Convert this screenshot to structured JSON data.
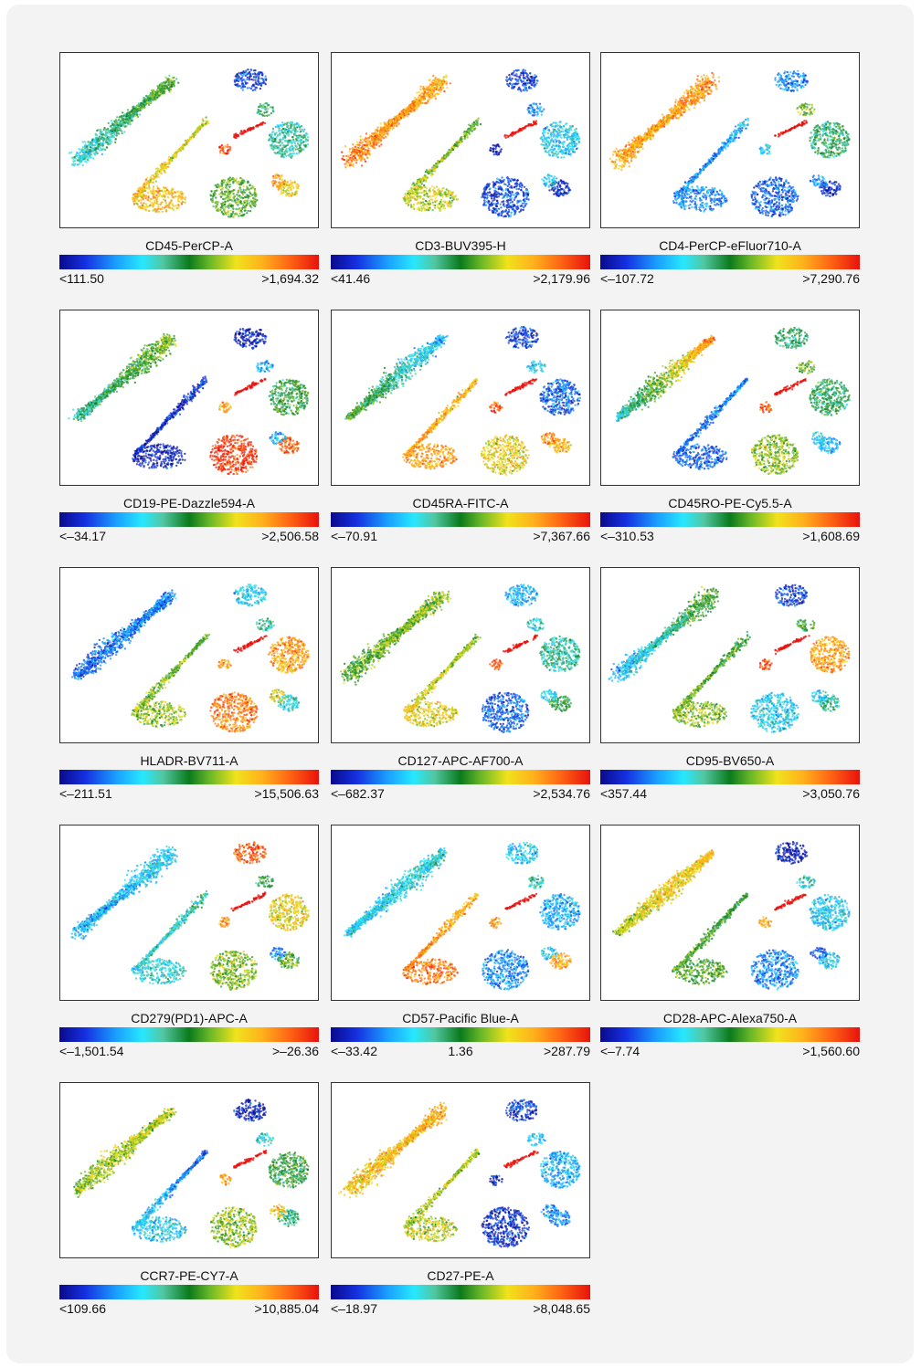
{
  "chart_data": [
    {
      "type": "scatter",
      "colorbar_label": "CD45-PerCP-A",
      "color_min": "<111.50",
      "color_max": ">1,694.32"
    },
    {
      "type": "scatter",
      "colorbar_label": "CD3-BUV395-H",
      "color_min": "<41.46",
      "color_max": ">2,179.96"
    },
    {
      "type": "scatter",
      "colorbar_label": "CD4-PerCP-eFluor710-A",
      "color_min": "<–107.72",
      "color_max": ">7,290.76"
    },
    {
      "type": "scatter",
      "colorbar_label": "CD19-PE-Dazzle594-A",
      "color_min": "<–34.17",
      "color_max": ">2,506.58"
    },
    {
      "type": "scatter",
      "colorbar_label": "CD45RA-FITC-A",
      "color_min": "<–70.91",
      "color_max": ">7,367.66"
    },
    {
      "type": "scatter",
      "colorbar_label": "CD45RO-PE-Cy5.5-A",
      "color_min": "<–310.53",
      "color_max": ">1,608.69"
    },
    {
      "type": "scatter",
      "colorbar_label": "HLADR-BV711-A",
      "color_min": "<–211.51",
      "color_max": ">15,506.63"
    },
    {
      "type": "scatter",
      "colorbar_label": "CD127-APC-AF700-A",
      "color_min": "<–682.37",
      "color_max": ">2,534.76"
    },
    {
      "type": "scatter",
      "colorbar_label": "CD95-BV650-A",
      "color_min": "<357.44",
      "color_max": ">3,050.76"
    },
    {
      "type": "scatter",
      "colorbar_label": "CD279(PD1)-APC-A",
      "color_min": "<–1,501.54",
      "color_max": ">–26.36"
    },
    {
      "type": "scatter",
      "colorbar_label": "CD57-Pacific Blue-A",
      "color_min": "<–33.42",
      "color_mid": "1.36",
      "color_max": ">287.79"
    },
    {
      "type": "scatter",
      "colorbar_label": "CD28-APC-Alexa750-A",
      "color_min": "<–7.74",
      "color_max": ">1,560.60"
    },
    {
      "type": "scatter",
      "colorbar_label": "CCR7-PE-CY7-A",
      "color_min": "<109.66",
      "color_max": ">10,885.04"
    },
    {
      "type": "scatter",
      "colorbar_label": "CD27-PE-A",
      "color_min": "<–18.97",
      "color_max": ">8,048.65"
    }
  ],
  "heat": [
    {
      "c1": 0.55,
      "c1b": 0.35,
      "stem": 0.65,
      "stemL": 0.75,
      "c3": 0.55,
      "c4": 0.7,
      "top": 0.1,
      "mid": 0.45,
      "rc": 0.4,
      "bud": 0.9,
      "sm": 0.8
    },
    {
      "c1": 0.78,
      "c1b": 0.85,
      "stem": 0.55,
      "stemL": 0.65,
      "c3": 0.12,
      "c4": 0.08,
      "top": 0.1,
      "mid": 0.2,
      "rc": 0.3,
      "bud": 0.05,
      "sm": 0.3
    },
    {
      "c1": 0.82,
      "c1b": 0.78,
      "stem": 0.25,
      "stemL": 0.2,
      "c3": 0.15,
      "c4": 0.08,
      "top": 0.2,
      "mid": 0.6,
      "rc": 0.45,
      "bud": 0.3,
      "sm": 0.2
    },
    {
      "c1": 0.6,
      "c1b": 0.4,
      "stem": 0.1,
      "stemL": 0.05,
      "c3": 0.95,
      "c4": 0.9,
      "top": 0.05,
      "mid": 0.25,
      "rc": 0.5,
      "bud": 0.8,
      "sm": 0.25
    },
    {
      "c1": 0.25,
      "c1b": 0.55,
      "stem": 0.75,
      "stemL": 0.8,
      "c3": 0.7,
      "c4": 0.75,
      "top": 0.12,
      "mid": 0.3,
      "rc": 0.15,
      "bud": 0.9,
      "sm": 0.85
    },
    {
      "c1": 0.85,
      "c1b": 0.35,
      "stem": 0.2,
      "stemL": 0.15,
      "c3": 0.6,
      "c4": 0.25,
      "top": 0.45,
      "mid": 0.55,
      "rc": 0.45,
      "bud": 0.9,
      "sm": 0.3
    },
    {
      "c1": 0.2,
      "c1b": 0.15,
      "stem": 0.55,
      "stemL": 0.6,
      "c3": 0.85,
      "c4": 0.35,
      "top": 0.3,
      "mid": 0.4,
      "rc": 0.8,
      "bud": 0.8,
      "sm": 0.7
    },
    {
      "c1": 0.6,
      "c1b": 0.55,
      "stem": 0.6,
      "stemL": 0.7,
      "c3": 0.15,
      "c4": 0.5,
      "top": 0.25,
      "mid": 0.35,
      "rc": 0.4,
      "bud": 0.9,
      "sm": 0.3
    },
    {
      "c1": 0.55,
      "c1b": 0.25,
      "stem": 0.5,
      "stemL": 0.6,
      "c3": 0.3,
      "c4": 0.4,
      "top": 0.1,
      "mid": 0.5,
      "rc": 0.8,
      "bud": 0.9,
      "sm": 0.3
    },
    {
      "c1": 0.3,
      "c1b": 0.25,
      "stem": 0.4,
      "stemL": 0.35,
      "c3": 0.6,
      "c4": 0.55,
      "top": 0.9,
      "mid": 0.5,
      "rc": 0.7,
      "bud": 0.8,
      "sm": 0.2
    },
    {
      "c1": 0.35,
      "c1b": 0.3,
      "stem": 0.75,
      "stemL": 0.85,
      "c3": 0.2,
      "c4": 0.8,
      "top": 0.3,
      "mid": 0.4,
      "rc": 0.25,
      "bud": 0.8,
      "sm": 0.3
    },
    {
      "c1": 0.75,
      "c1b": 0.65,
      "stem": 0.5,
      "stemL": 0.55,
      "c3": 0.2,
      "c4": 0.3,
      "top": 0.05,
      "mid": 0.35,
      "rc": 0.3,
      "bud": 0.8,
      "sm": 0.15
    },
    {
      "c1": 0.65,
      "c1b": 0.6,
      "stem": 0.15,
      "stemL": 0.3,
      "c3": 0.6,
      "c4": 0.45,
      "top": 0.05,
      "mid": 0.35,
      "rc": 0.5,
      "bud": 0.8,
      "sm": 0.75
    },
    {
      "c1": 0.78,
      "c1b": 0.72,
      "stem": 0.6,
      "stemL": 0.65,
      "c3": 0.08,
      "c4": 0.2,
      "top": 0.1,
      "mid": 0.3,
      "rc": 0.25,
      "bud": 0.05,
      "sm": 0.2
    }
  ]
}
